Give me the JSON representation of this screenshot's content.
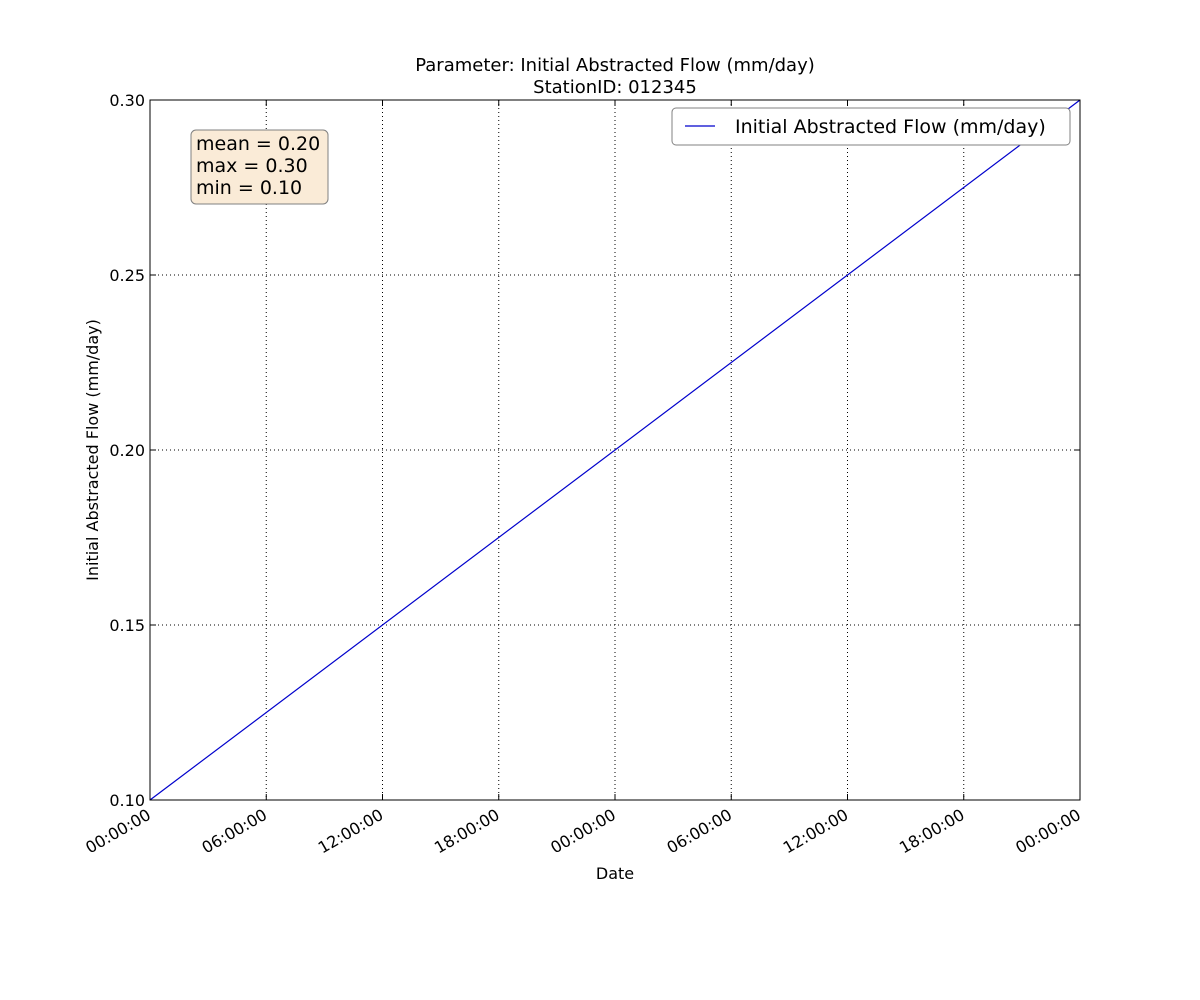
{
  "chart_data": {
    "type": "line",
    "title": "Parameter: Initial Abstracted Flow (mm/day)",
    "subtitle": "StationID: 012345",
    "xlabel": "Date",
    "ylabel": "Initial Abstracted Flow (mm/day)",
    "x_tick_labels": [
      "00:00:00",
      "06:00:00",
      "12:00:00",
      "18:00:00",
      "00:00:00",
      "06:00:00",
      "12:00:00",
      "18:00:00",
      "00:00:00"
    ],
    "y_tick_labels": [
      "0.10",
      "0.15",
      "0.20",
      "0.25",
      "0.30"
    ],
    "y_ticks": [
      0.1,
      0.15,
      0.2,
      0.25,
      0.3
    ],
    "ylim": [
      0.1,
      0.3
    ],
    "grid": true,
    "legend_position": "top-right",
    "stats_box": {
      "lines": [
        "mean = 0.20",
        "max = 0.30",
        "min = 0.10"
      ],
      "background": "#faebd7",
      "border": "#808080"
    },
    "series": [
      {
        "name": "Initial Abstracted Flow (mm/day)",
        "color": "#0000cc",
        "points": [
          {
            "x": "00:00:00",
            "y": 0.1
          },
          {
            "x": "00:00:00",
            "y": 0.3
          }
        ]
      }
    ]
  }
}
